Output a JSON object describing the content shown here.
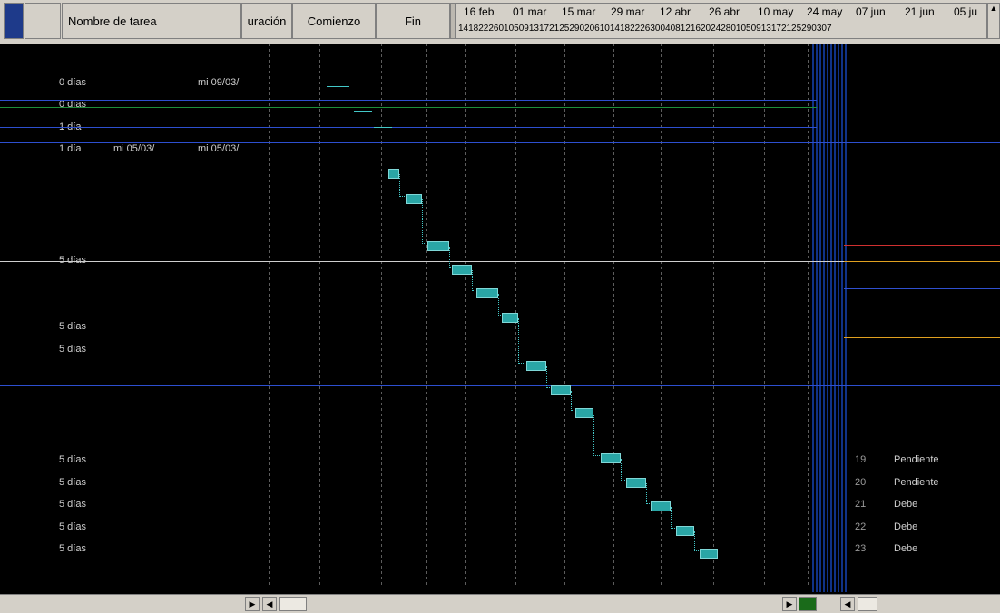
{
  "header": {
    "col_nombre": "Nombre de tarea",
    "col_duracion": "uración",
    "col_comienzo": "Comienzo",
    "col_fin": "Fin"
  },
  "timescale": {
    "weeks": [
      "16 feb",
      "01 mar",
      "15 mar",
      "29 mar",
      "12 abr",
      "26 abr",
      "10 may",
      "24 may",
      "07 jun",
      "21 jun",
      "05 ju"
    ],
    "days": "14182226010509131721252902061014182226300408121620242801050913172125290307"
  },
  "rows": [
    {
      "dur": "",
      "start": "",
      "end": "",
      "num": "",
      "name": ""
    },
    {
      "dur": "0 días",
      "start": "",
      "end": "mi 09/03/",
      "num": "",
      "name": ""
    },
    {
      "dur": "0 días",
      "start": "",
      "end": "",
      "num": "",
      "name": ""
    },
    {
      "dur": "1 día",
      "start": "",
      "end": "",
      "num": "",
      "name": ""
    },
    {
      "dur": "1 día",
      "start": "mi 05/03/",
      "end": "mi 05/03/",
      "num": "",
      "name": ""
    },
    {
      "dur": "",
      "start": "",
      "end": "",
      "num": "",
      "name": ""
    },
    {
      "dur": "",
      "start": "",
      "end": "",
      "num": "",
      "name": ""
    },
    {
      "dur": "",
      "start": "",
      "end": "",
      "num": "",
      "name": ""
    },
    {
      "dur": "",
      "start": "",
      "end": "",
      "num": "",
      "name": ""
    },
    {
      "dur": "5 días",
      "start": "",
      "end": "",
      "num": "",
      "name": ""
    },
    {
      "dur": "",
      "start": "",
      "end": "",
      "num": "",
      "name": ""
    },
    {
      "dur": "",
      "start": "",
      "end": "",
      "num": "",
      "name": ""
    },
    {
      "dur": "5 días",
      "start": "",
      "end": "",
      "num": "",
      "name": ""
    },
    {
      "dur": "5 días",
      "start": "",
      "end": "",
      "num": "",
      "name": ""
    },
    {
      "dur": "",
      "start": "",
      "end": "",
      "num": "",
      "name": ""
    },
    {
      "dur": "",
      "start": "",
      "end": "",
      "num": "",
      "name": ""
    },
    {
      "dur": "",
      "start": "",
      "end": "",
      "num": "",
      "name": ""
    },
    {
      "dur": "",
      "start": "",
      "end": "",
      "num": "",
      "name": ""
    },
    {
      "dur": "5 días",
      "start": "",
      "end": "",
      "num": "19",
      "name": "Pendiente"
    },
    {
      "dur": "5 días",
      "start": "",
      "end": "",
      "num": "20",
      "name": "Pendiente"
    },
    {
      "dur": "5 días",
      "start": "",
      "end": "",
      "num": "21",
      "name": "Debe"
    },
    {
      "dur": "5 días",
      "start": "",
      "end": "",
      "num": "22",
      "name": "Debe"
    },
    {
      "dur": "5 días",
      "start": "",
      "end": "",
      "num": "23",
      "name": "Debe"
    }
  ],
  "colors": {
    "chrome": "#d4d0c8",
    "bar": "#2aa6a6",
    "link": "#43c8c8",
    "background": "#000000",
    "row_indicator": "#1e3a8a"
  },
  "icons": {
    "scroll_up": "▲",
    "scroll_left": "◀",
    "scroll_right": "▶"
  }
}
